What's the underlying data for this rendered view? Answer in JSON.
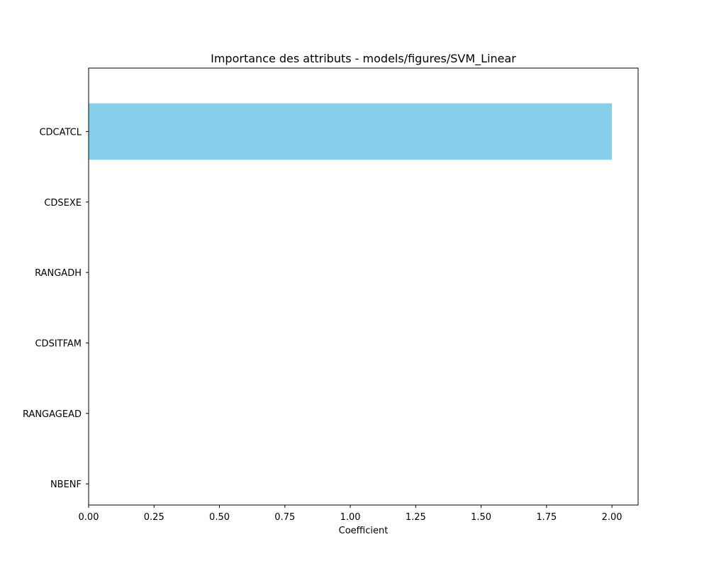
{
  "chart_data": {
    "type": "bar",
    "orientation": "horizontal",
    "title": "Importance des attributs - models/figures/SVM_Linear",
    "xlabel": "Coefficient",
    "ylabel": "",
    "categories": [
      "CDCATCL",
      "CDSEXE",
      "RANGADH",
      "CDSITFAM",
      "RANGAGEAD",
      "NBENF"
    ],
    "values": [
      2.0,
      0.0,
      0.0,
      0.0,
      0.0,
      0.0
    ],
    "xlim": [
      0,
      2.1
    ],
    "xticks": [
      "0.00",
      "0.25",
      "0.50",
      "0.75",
      "1.00",
      "1.25",
      "1.50",
      "1.75",
      "2.00"
    ],
    "grid": false,
    "legend": "none",
    "bar_color": "#87CEEB"
  }
}
